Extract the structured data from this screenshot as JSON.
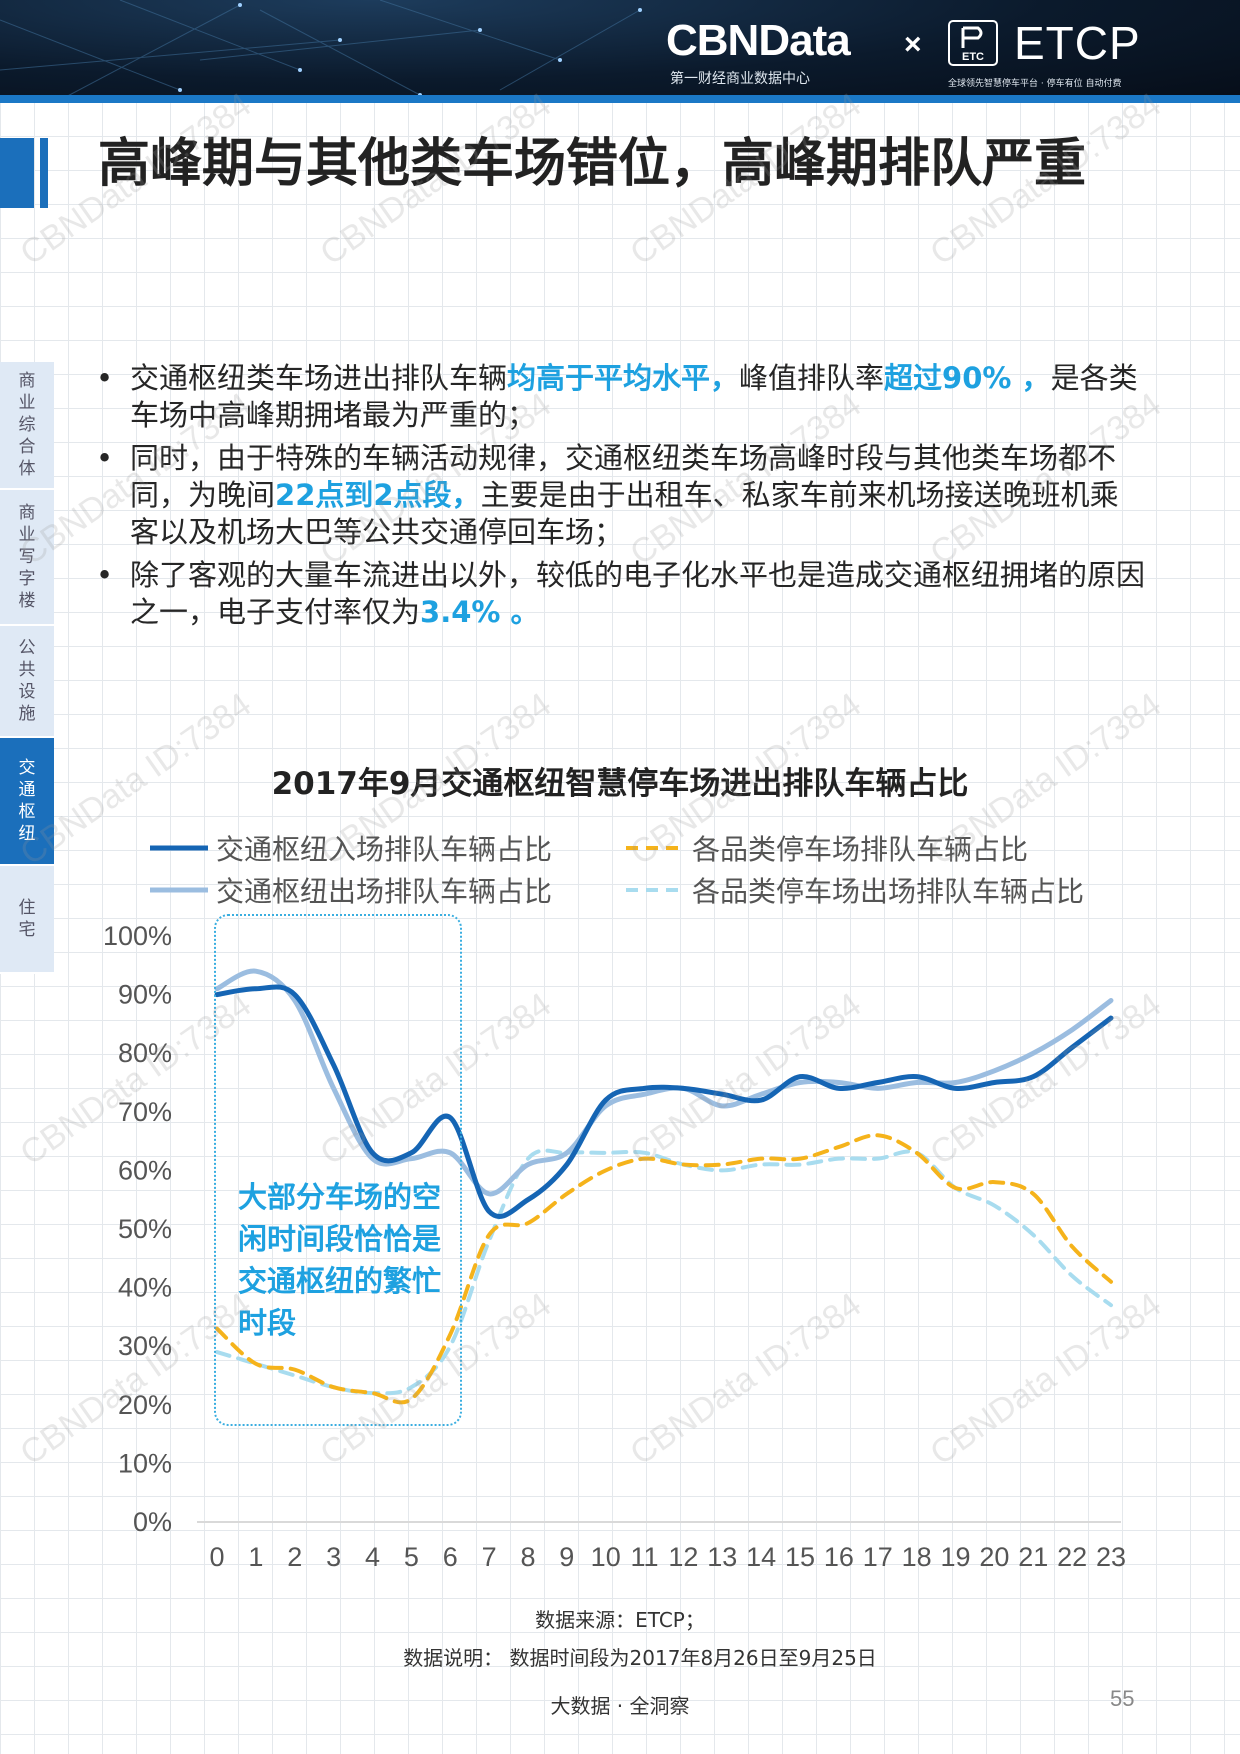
{
  "header": {
    "cbn_logo": "CBNData",
    "cbn_subtitle": "第一财经商业数据中心",
    "times": "×",
    "etc_badge": "ETC",
    "etcp_logo": "ETCP",
    "etcp_subtitle": "全球领先智慧停车平台 · 停车有位  自动付费",
    "colors": {
      "header_bg": "#0b1a2c",
      "accent": "#1b6fbb"
    }
  },
  "title": "高峰期与其他类车场错位，高峰期排队严重",
  "side_nav": [
    {
      "label": "商业综合体",
      "active": false
    },
    {
      "label": "商业写字楼",
      "active": false
    },
    {
      "label": "公共设施",
      "active": false
    },
    {
      "label": "交通枢纽",
      "active": true
    },
    {
      "label": "住宅",
      "active": false
    }
  ],
  "bullets": [
    {
      "p1": "交通枢纽类车场进出排队车辆",
      "h1": "均高于平均水平，",
      "p2": "峰值排队率",
      "h2": "超过90% ，",
      "p3": "是各类车场中高峰期拥堵最为严重的；"
    },
    {
      "p1": "同时，由于特殊的车辆活动规律，交通枢纽类车场高峰时段与其他类车场都不同，为晚间",
      "h1": "22点到2点段，",
      "p2": "主要是由于出租车、私家车前来机场接送晚班机乘客以及机场大巴等公共交通停回车场；"
    },
    {
      "p1": "除了客观的大量车流进出以外，较低的电子化水平也是造成交通枢纽拥堵的原因之一，电子支付率仅为",
      "h1": "3.4% 。"
    }
  ],
  "chart_data": {
    "type": "line",
    "title": "2017年9月交通枢纽智慧停车场进出排队车辆占比",
    "x": [
      0,
      1,
      2,
      3,
      4,
      5,
      6,
      7,
      8,
      9,
      10,
      11,
      12,
      13,
      14,
      15,
      16,
      17,
      18,
      19,
      20,
      21,
      22,
      23
    ],
    "y_ticks": [
      "0%",
      "10%",
      "20%",
      "30%",
      "40%",
      "50%",
      "60%",
      "70%",
      "80%",
      "90%",
      "100%"
    ],
    "ylim": [
      0,
      100
    ],
    "series": [
      {
        "name": "交通枢纽入场排队车辆占比",
        "color": "#1565b4",
        "dash": false,
        "values": [
          90,
          91,
          90,
          78,
          63,
          63,
          69,
          53,
          55,
          61,
          72,
          74,
          74,
          73,
          72,
          76,
          74,
          75,
          76,
          74,
          75,
          76,
          81,
          86
        ]
      },
      {
        "name": "交通枢纽出场排队车辆占比",
        "color": "#9bbde0",
        "dash": false,
        "values": [
          91,
          94,
          89,
          74,
          62,
          62,
          63,
          56,
          61,
          63,
          71,
          73,
          74,
          71,
          73,
          75,
          75,
          74,
          75,
          75,
          77,
          80,
          84,
          89
        ]
      },
      {
        "name": "各品类停车场排队车辆占比",
        "color": "#f5b31b",
        "dash": true,
        "values": [
          33,
          27,
          26,
          23,
          22,
          21,
          32,
          49,
          51,
          56,
          60,
          62,
          61,
          61,
          62,
          62,
          64,
          66,
          63,
          57,
          58,
          56,
          47,
          41
        ]
      },
      {
        "name": "各品类停车场出场排队车辆占比",
        "color": "#a8dcef",
        "dash": true,
        "values": [
          29,
          27,
          25,
          23,
          22,
          23,
          30,
          48,
          62,
          63,
          63,
          63,
          61,
          60,
          61,
          61,
          62,
          62,
          63,
          57,
          54,
          49,
          42,
          37
        ]
      }
    ]
  },
  "annotation": "大部分车场的空闲时间段恰恰是交通枢纽的繁忙时段",
  "source": "数据来源：ETCP；",
  "note": "数据说明：  数据时间段为2017年8月26日至9月25日",
  "footer": "大数据 · 全洞察",
  "page_number": "55",
  "watermark": "CBNData ID:7384"
}
